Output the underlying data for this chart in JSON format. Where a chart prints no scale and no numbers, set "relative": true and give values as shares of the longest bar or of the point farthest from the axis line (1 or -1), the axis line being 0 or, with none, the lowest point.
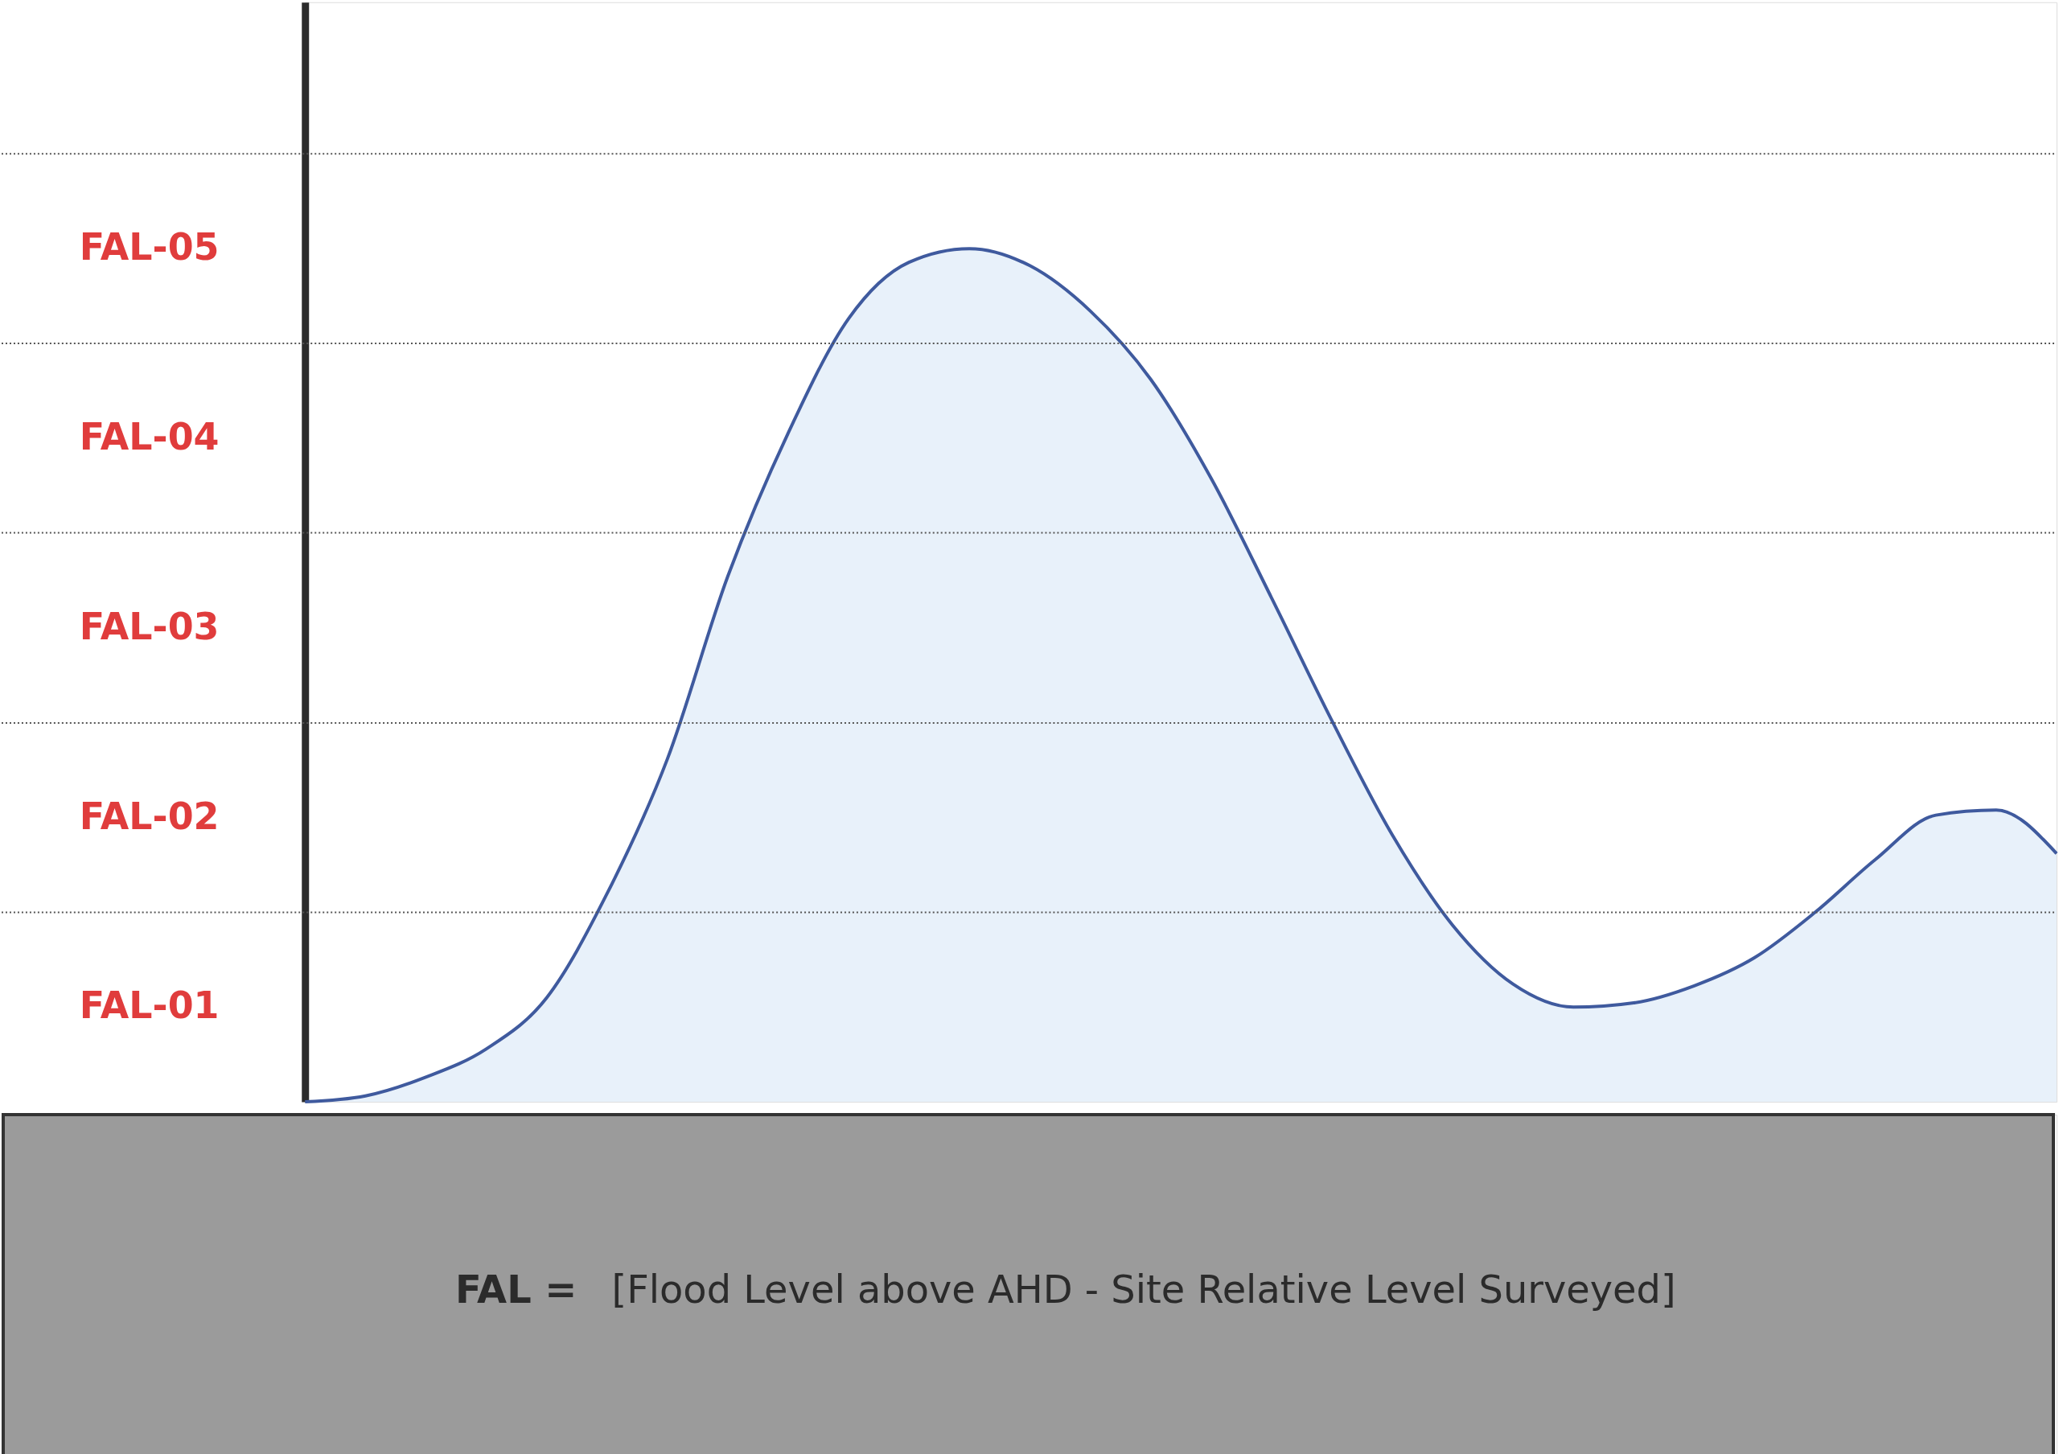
{
  "chart_data": {
    "type": "area",
    "relative": true,
    "categories": [
      null,
      null,
      null,
      null,
      null,
      null,
      null,
      null,
      null,
      null,
      null,
      null,
      null,
      null,
      null,
      null,
      null,
      null,
      null,
      null,
      null,
      null,
      null,
      null,
      null,
      null,
      null,
      null,
      null,
      null
    ],
    "series": [
      {
        "color": "#3f5a9e",
        "values": [
          0,
          0.007,
          0.029,
          0.062,
          0.122,
          0.244,
          0.402,
          0.616,
          0.784,
          0.918,
          0.984,
          1,
          0.98,
          0.927,
          0.847,
          0.731,
          0.591,
          0.447,
          0.313,
          0.207,
          0.138,
          0.111,
          0.116,
          0.136,
          0.169,
          0.222,
          0.284,
          0.336,
          0.342,
          0.291
        ]
      }
    ],
    "ref_lines": [
      {
        "axis": "y",
        "value": 0.222,
        "color": "#555555",
        "line_style": "dotted"
      },
      {
        "axis": "y",
        "value": 0.444,
        "color": "#555555",
        "line_style": "dotted"
      },
      {
        "axis": "y",
        "value": 0.667,
        "color": "#555555",
        "line_style": "dotted"
      },
      {
        "axis": "y",
        "value": 0.889,
        "color": "#555555",
        "line_style": "dotted"
      },
      {
        "axis": "y",
        "value": 1.111,
        "color": "#555555",
        "line_style": "dotted"
      }
    ],
    "annotations": [
      "FAL-01",
      "FAL-02",
      "FAL-03",
      "FAL-04",
      "FAL-05",
      "FAL =",
      "[Flood Level above AHD - Site Relative Level Surveyed]"
    ]
  }
}
